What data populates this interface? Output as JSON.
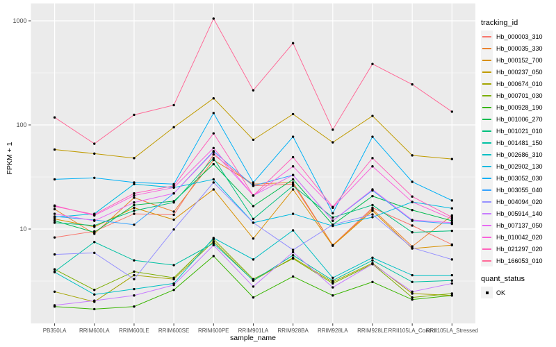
{
  "chart_data": {
    "type": "line",
    "xlabel": "sample_name",
    "ylabel": "FPKM + 1",
    "y_scale": "log10",
    "y_ticks": [
      10,
      100,
      1000
    ],
    "y_minor_ticks": [
      3.1623,
      31.623,
      316.23
    ],
    "ylim": [
      1.2,
      1450
    ],
    "legend_title": "tracking_id",
    "legend_position": "right",
    "grid": "on",
    "panel_bg": "#EBEBEB",
    "grid_color": "#FFFFFF",
    "tick_label_color": "#4D4D4D",
    "point_color": "#000000",
    "legend_key_bg": "#F2F2F2",
    "categories": [
      "PB350LA",
      "RRIM600LA",
      "RRIM600LE",
      "RRIM600SE",
      "RRIM600PE",
      "RRIM901LA",
      "RRIM928BA",
      "RRIM928LA",
      "RRIM928LE",
      "RRII105LA_Control",
      "RRII105LA_Stressed"
    ],
    "series": [
      {
        "name": "Hb_000003_310",
        "color": "#F8766D",
        "values": [
          8.3,
          9.5,
          14,
          13.7,
          52,
          26,
          27,
          7.0,
          16,
          10.8,
          7.1
        ]
      },
      {
        "name": "Hb_000035_330",
        "color": "#EA8331",
        "values": [
          15.5,
          9.0,
          20,
          14.7,
          46,
          27,
          28,
          7.0,
          15.5,
          6.8,
          13.5
        ]
      },
      {
        "name": "Hb_000152_700",
        "color": "#D89000",
        "values": [
          12.5,
          10.5,
          16,
          12.3,
          24,
          8.1,
          24,
          6.9,
          15,
          6.5,
          7.0
        ]
      },
      {
        "name": "Hb_000237_050",
        "color": "#C09B00",
        "values": [
          58,
          53,
          48,
          95,
          180,
          72,
          127,
          68,
          122,
          51,
          47
        ]
      },
      {
        "name": "Hb_000674_010",
        "color": "#A3A500",
        "values": [
          2.5,
          2.0,
          3.6,
          3.3,
          7.6,
          3.2,
          5.3,
          3.1,
          4.7,
          2.4,
          2.3
        ]
      },
      {
        "name": "Hb_000701_030",
        "color": "#7CAE00",
        "values": [
          4.1,
          2.6,
          3.9,
          3.4,
          8.0,
          3.3,
          5.2,
          3.0,
          4.6,
          2.2,
          2.4
        ]
      },
      {
        "name": "Hb_000928_190",
        "color": "#39B600",
        "values": [
          1.8,
          1.7,
          1.8,
          2.6,
          5.5,
          2.2,
          3.5,
          2.3,
          3.1,
          2.1,
          2.3
        ]
      },
      {
        "name": "Hb_001006_270",
        "color": "#00BB4E",
        "values": [
          12,
          9.3,
          17,
          18.5,
          42,
          16.6,
          30,
          11,
          20.7,
          15.2,
          12
        ]
      },
      {
        "name": "Hb_001021_010",
        "color": "#00BF7D",
        "values": [
          11.5,
          10.8,
          15,
          18,
          48,
          12.5,
          26,
          12.9,
          17,
          9.3,
          9.6
        ]
      },
      {
        "name": "Hb_001481_150",
        "color": "#00C1A3",
        "values": [
          3.9,
          7.5,
          5.0,
          4.5,
          7.3,
          3.2,
          5.6,
          3.2,
          5.0,
          3.1,
          3.2
        ]
      },
      {
        "name": "Hb_002686_310",
        "color": "#00BFC4",
        "values": [
          3.85,
          2.35,
          2.65,
          3.0,
          8.2,
          5.1,
          9.7,
          3.4,
          5.3,
          3.6,
          3.6
        ]
      },
      {
        "name": "Hb_002902_130",
        "color": "#00BAE0",
        "values": [
          13,
          14,
          27,
          25,
          30,
          11.5,
          14,
          10.7,
          13,
          18.2,
          15.8
        ]
      },
      {
        "name": "Hb_003052_030",
        "color": "#00B0F6",
        "values": [
          30,
          31,
          28,
          27,
          130,
          28,
          77,
          14.2,
          77,
          28.4,
          18.8
        ]
      },
      {
        "name": "Hb_003055_040",
        "color": "#35A2FF",
        "values": [
          13.2,
          12.2,
          11,
          22,
          56,
          26,
          33,
          12,
          23.5,
          12.0,
          11.2
        ]
      },
      {
        "name": "Hb_004094_020",
        "color": "#9590FF",
        "values": [
          5.7,
          5.9,
          3.3,
          9.9,
          28,
          11.5,
          6.3,
          11,
          13.8,
          6.6,
          5.1
        ]
      },
      {
        "name": "Hb_005914_140",
        "color": "#C77CFF",
        "values": [
          1.85,
          2.05,
          2.3,
          2.9,
          7.0,
          2.8,
          6.0,
          2.75,
          4.6,
          2.5,
          3.0
        ]
      },
      {
        "name": "Hb_007137_050",
        "color": "#E76BF3",
        "values": [
          14,
          12,
          18,
          22,
          55,
          21,
          33,
          12,
          24,
          12.2,
          11.5
        ]
      },
      {
        "name": "Hb_010042_020",
        "color": "#FA62DB",
        "values": [
          16.8,
          13.5,
          21,
          25,
          60,
          20.9,
          40,
          16,
          40,
          18.2,
          12.5
        ]
      },
      {
        "name": "Hb_021297_020",
        "color": "#FF62BC",
        "values": [
          16.5,
          13.8,
          22,
          26,
          83,
          21,
          49,
          16.3,
          48,
          20.5,
          13
        ]
      },
      {
        "name": "Hb_166053_010",
        "color": "#FF6A98",
        "values": [
          118,
          66,
          125,
          155,
          1050,
          215,
          610,
          90,
          385,
          245,
          134
        ]
      }
    ],
    "quant_legend": {
      "title": "quant_status",
      "items": [
        {
          "label": "OK",
          "marker": "black-square-point"
        }
      ]
    }
  }
}
